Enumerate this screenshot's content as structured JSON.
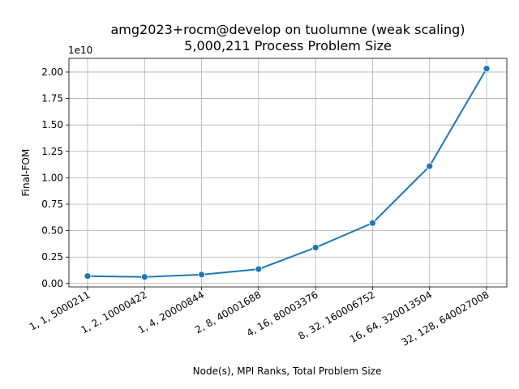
{
  "chart_data": {
    "type": "line",
    "title": "amg2023+rocm@develop on tuolumne (weak scaling)",
    "subtitle": "5,000,211 Process Problem Size",
    "xlabel": "Node(s), MPI Ranks, Total Problem Size",
    "ylabel": "Final-FOM",
    "y_offset_label": "1e10",
    "categories": [
      "1, 1, 5000211",
      "1, 2, 10000422",
      "1, 4, 20000844",
      "2, 8, 40001688",
      "4, 16, 80003376",
      "8, 32, 160006752",
      "16, 64, 320013504",
      "32, 128, 640027008"
    ],
    "values": [
      700000000,
      620000000,
      840000000,
      1360000000,
      3400000000,
      5720000000,
      11100000000,
      20330000000
    ],
    "yticks": [
      0,
      2500000000,
      5000000000,
      7500000000,
      10000000000,
      12500000000,
      15000000000,
      17500000000,
      20000000000
    ],
    "ytick_labels": [
      "0.00",
      "0.25",
      "0.50",
      "0.75",
      "1.00",
      "1.25",
      "1.50",
      "1.75",
      "2.00"
    ],
    "ylim": [
      -320000000,
      21300000000
    ],
    "grid": true,
    "colors": {
      "line": "#1f77b4",
      "marker": "#1f77b4",
      "grid": "#b0b0b0"
    }
  }
}
